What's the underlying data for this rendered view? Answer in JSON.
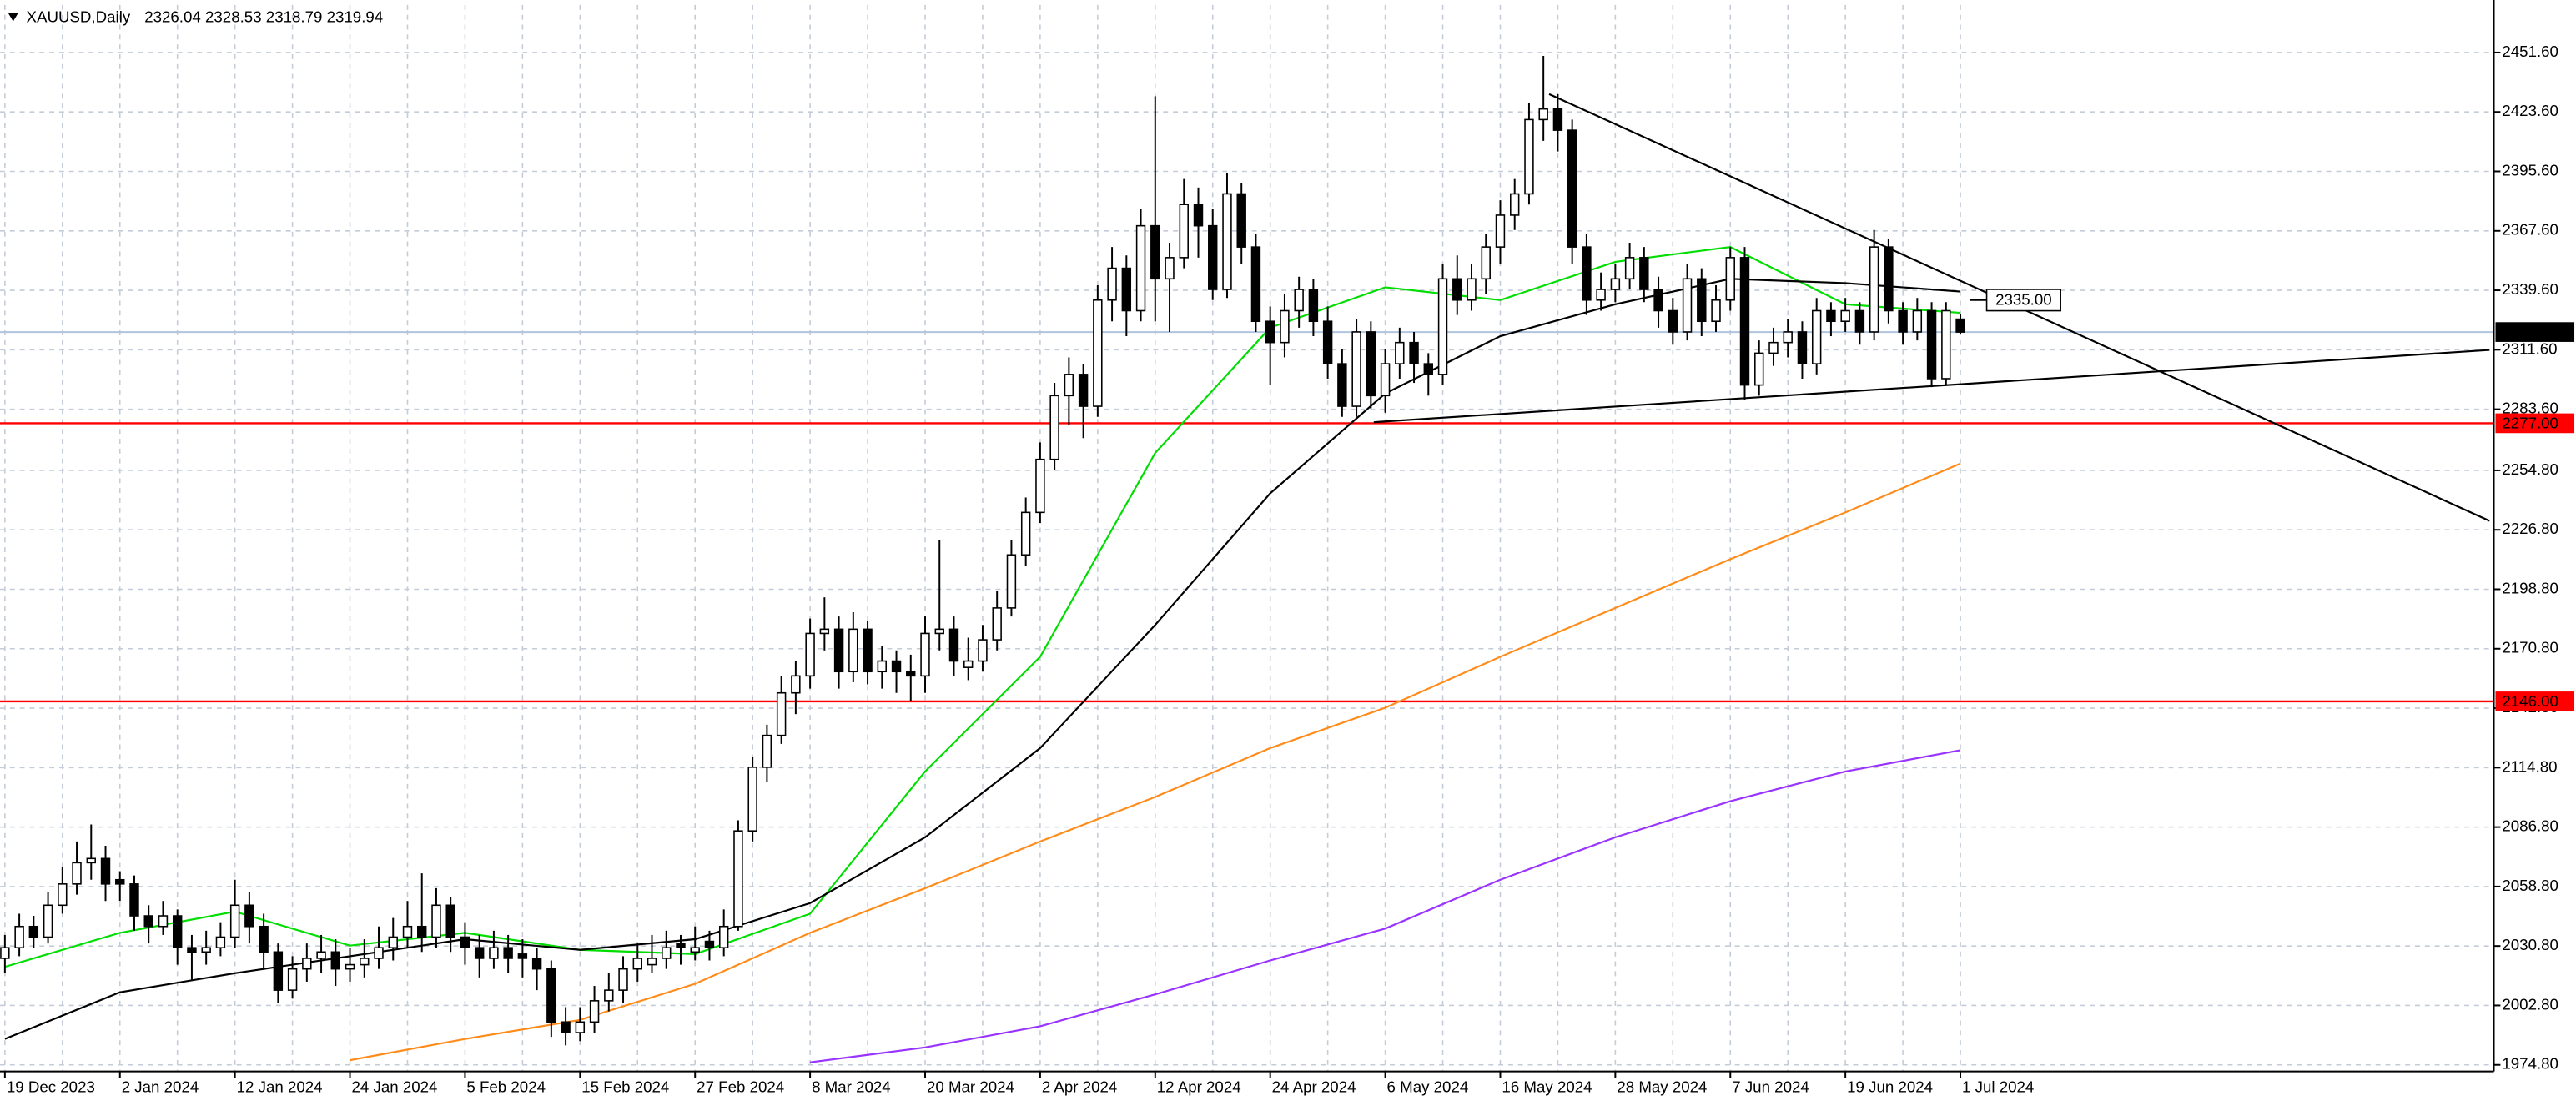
{
  "chart_data": {
    "type": "candlestick",
    "title": "XAUUSD,Daily",
    "up_color": "#ffffff",
    "down_color": "#000000",
    "grid": true,
    "grid_color": "#c3ccd8",
    "price_line_color": "#b0c4de",
    "xlim": [
      -0.34,
      173.1
    ],
    "ylim": [
      1971.7,
      2474.0
    ],
    "yticks": [
      {
        "value": 2451.6,
        "label": "2451.60"
      },
      {
        "value": 2423.6,
        "label": "2423.60"
      },
      {
        "value": 2395.6,
        "label": "2395.60"
      },
      {
        "value": 2367.6,
        "label": "2367.60"
      },
      {
        "value": 2339.6,
        "label": "2339.60"
      },
      {
        "value": 2311.6,
        "label": "2311.60"
      },
      {
        "value": 2283.6,
        "label": "2283.60"
      },
      {
        "value": 2254.8,
        "label": "2254.80"
      },
      {
        "value": 2226.8,
        "label": "2226.80"
      },
      {
        "value": 2198.8,
        "label": "2198.80"
      },
      {
        "value": 2170.8,
        "label": "2170.80"
      },
      {
        "value": 2142.8,
        "label": "2142.80"
      },
      {
        "value": 2114.8,
        "label": "2114.80"
      },
      {
        "value": 2086.8,
        "label": "2086.80"
      },
      {
        "value": 2058.8,
        "label": "2058.80"
      },
      {
        "value": 2030.8,
        "label": "2030.80"
      },
      {
        "value": 2002.8,
        "label": "2002.80"
      },
      {
        "value": 1974.8,
        "label": "1974.80"
      }
    ],
    "categories": [
      "19 Dec 2023",
      null,
      null,
      null,
      null,
      null,
      null,
      null,
      "2 Jan 2024",
      null,
      null,
      null,
      null,
      null,
      null,
      null,
      "12 Jan 2024",
      null,
      null,
      null,
      null,
      null,
      null,
      null,
      "24 Jan 2024",
      null,
      null,
      null,
      null,
      null,
      null,
      null,
      "5 Feb 2024",
      null,
      null,
      null,
      null,
      null,
      null,
      null,
      "15 Feb 2024",
      null,
      null,
      null,
      null,
      null,
      null,
      null,
      "27 Feb 2024",
      null,
      null,
      null,
      null,
      null,
      null,
      null,
      "8 Mar 2024",
      null,
      null,
      null,
      null,
      null,
      null,
      null,
      "20 Mar 2024",
      null,
      null,
      null,
      null,
      null,
      null,
      null,
      "2 Apr 2024",
      null,
      null,
      null,
      null,
      null,
      null,
      null,
      "12 Apr 2024",
      null,
      null,
      null,
      null,
      null,
      null,
      null,
      "24 Apr 2024",
      null,
      null,
      null,
      null,
      null,
      null,
      null,
      "6 May 2024",
      null,
      null,
      null,
      null,
      null,
      null,
      null,
      "16 May 2024",
      null,
      null,
      null,
      null,
      null,
      null,
      null,
      "28 May 2024",
      null,
      null,
      null,
      null,
      null,
      null,
      null,
      "7 Jun 2024",
      null,
      null,
      null,
      null,
      null,
      null,
      null,
      "19 Jun 2024",
      null,
      null,
      null,
      null,
      null,
      null,
      null,
      "1 Jul 2024"
    ],
    "values": [
      [
        2025,
        2036,
        2018,
        2030
      ],
      [
        2030,
        2046,
        2026,
        2040
      ],
      [
        2040,
        2045,
        2030,
        2035
      ],
      [
        2035,
        2056,
        2032,
        2050
      ],
      [
        2050,
        2068,
        2046,
        2060
      ],
      [
        2060,
        2080,
        2055,
        2070
      ],
      [
        2070,
        2088,
        2062,
        2072
      ],
      [
        2072,
        2078,
        2052,
        2060
      ],
      [
        2062,
        2066,
        2052,
        2060
      ],
      [
        2060,
        2064,
        2038,
        2045
      ],
      [
        2045,
        2050,
        2032,
        2040
      ],
      [
        2040,
        2052,
        2036,
        2045
      ],
      [
        2045,
        2048,
        2022,
        2030
      ],
      [
        2030,
        2036,
        2015,
        2028
      ],
      [
        2028,
        2038,
        2022,
        2030
      ],
      [
        2030,
        2042,
        2026,
        2035
      ],
      [
        2035,
        2062,
        2030,
        2050
      ],
      [
        2050,
        2056,
        2032,
        2040
      ],
      [
        2040,
        2046,
        2020,
        2028
      ],
      [
        2028,
        2032,
        2004,
        2010
      ],
      [
        2010,
        2026,
        2006,
        2020
      ],
      [
        2020,
        2032,
        2014,
        2025
      ],
      [
        2025,
        2036,
        2018,
        2028
      ],
      [
        2028,
        2034,
        2012,
        2020
      ],
      [
        2020,
        2030,
        2014,
        2022
      ],
      [
        2022,
        2034,
        2016,
        2025
      ],
      [
        2025,
        2040,
        2020,
        2030
      ],
      [
        2030,
        2044,
        2024,
        2035
      ],
      [
        2035,
        2052,
        2030,
        2040
      ],
      [
        2040,
        2065,
        2028,
        2035
      ],
      [
        2035,
        2058,
        2030,
        2050
      ],
      [
        2050,
        2054,
        2028,
        2035
      ],
      [
        2035,
        2042,
        2022,
        2030
      ],
      [
        2030,
        2036,
        2016,
        2025
      ],
      [
        2025,
        2038,
        2020,
        2030
      ],
      [
        2030,
        2036,
        2018,
        2025
      ],
      [
        2027,
        2034,
        2016,
        2025
      ],
      [
        2025,
        2030,
        2010,
        2020
      ],
      [
        2020,
        2024,
        1988,
        1995
      ],
      [
        1995,
        2002,
        1984,
        1990
      ],
      [
        1990,
        2002,
        1986,
        1995
      ],
      [
        1995,
        2012,
        1990,
        2005
      ],
      [
        2005,
        2018,
        2000,
        2010
      ],
      [
        2010,
        2026,
        2004,
        2020
      ],
      [
        2020,
        2032,
        2014,
        2025
      ],
      [
        2022,
        2036,
        2018,
        2025
      ],
      [
        2025,
        2038,
        2020,
        2030
      ],
      [
        2032,
        2036,
        2022,
        2030
      ],
      [
        2028,
        2040,
        2024,
        2030
      ],
      [
        2033,
        2038,
        2024,
        2030
      ],
      [
        2030,
        2048,
        2026,
        2040
      ],
      [
        2040,
        2090,
        2038,
        2085
      ],
      [
        2085,
        2120,
        2080,
        2115
      ],
      [
        2115,
        2135,
        2108,
        2130
      ],
      [
        2130,
        2158,
        2126,
        2150
      ],
      [
        2150,
        2165,
        2140,
        2158
      ],
      [
        2158,
        2185,
        2152,
        2178
      ],
      [
        2178,
        2195,
        2170,
        2180
      ],
      [
        2180,
        2186,
        2152,
        2160
      ],
      [
        2160,
        2188,
        2155,
        2180
      ],
      [
        2180,
        2184,
        2154,
        2160
      ],
      [
        2160,
        2172,
        2152,
        2165
      ],
      [
        2165,
        2170,
        2150,
        2160
      ],
      [
        2160,
        2168,
        2146,
        2158
      ],
      [
        2158,
        2186,
        2150,
        2178
      ],
      [
        2178,
        2222,
        2170,
        2180
      ],
      [
        2180,
        2186,
        2158,
        2165
      ],
      [
        2162,
        2176,
        2156,
        2165
      ],
      [
        2165,
        2182,
        2160,
        2175
      ],
      [
        2175,
        2198,
        2170,
        2190
      ],
      [
        2190,
        2222,
        2186,
        2215
      ],
      [
        2215,
        2242,
        2210,
        2235
      ],
      [
        2235,
        2268,
        2230,
        2260
      ],
      [
        2260,
        2296,
        2255,
        2290
      ],
      [
        2290,
        2308,
        2276,
        2300
      ],
      [
        2300,
        2305,
        2270,
        2285
      ],
      [
        2285,
        2342,
        2280,
        2335
      ],
      [
        2335,
        2360,
        2325,
        2350
      ],
      [
        2350,
        2356,
        2318,
        2330
      ],
      [
        2330,
        2378,
        2325,
        2370
      ],
      [
        2370,
        2431,
        2325,
        2345
      ],
      [
        2345,
        2362,
        2320,
        2355
      ],
      [
        2355,
        2392,
        2350,
        2380
      ],
      [
        2380,
        2388,
        2355,
        2370
      ],
      [
        2370,
        2378,
        2335,
        2340
      ],
      [
        2340,
        2395,
        2336,
        2385
      ],
      [
        2385,
        2390,
        2352,
        2360
      ],
      [
        2360,
        2366,
        2320,
        2325
      ],
      [
        2325,
        2332,
        2295,
        2315
      ],
      [
        2315,
        2338,
        2308,
        2330
      ],
      [
        2330,
        2346,
        2322,
        2340
      ],
      [
        2340,
        2345,
        2318,
        2325
      ],
      [
        2325,
        2332,
        2298,
        2305
      ],
      [
        2305,
        2312,
        2280,
        2285
      ],
      [
        2285,
        2326,
        2280,
        2320
      ],
      [
        2320,
        2325,
        2284,
        2290
      ],
      [
        2290,
        2312,
        2282,
        2305
      ],
      [
        2305,
        2322,
        2298,
        2315
      ],
      [
        2315,
        2320,
        2296,
        2305
      ],
      [
        2305,
        2310,
        2290,
        2300
      ],
      [
        2300,
        2352,
        2295,
        2345
      ],
      [
        2345,
        2356,
        2328,
        2335
      ],
      [
        2335,
        2352,
        2330,
        2345
      ],
      [
        2345,
        2366,
        2338,
        2360
      ],
      [
        2360,
        2382,
        2352,
        2375
      ],
      [
        2375,
        2392,
        2368,
        2385
      ],
      [
        2385,
        2428,
        2380,
        2420
      ],
      [
        2420,
        2450,
        2410,
        2425
      ],
      [
        2425,
        2432,
        2405,
        2415
      ],
      [
        2415,
        2420,
        2352,
        2360
      ],
      [
        2360,
        2366,
        2328,
        2335
      ],
      [
        2335,
        2348,
        2330,
        2340
      ],
      [
        2340,
        2352,
        2334,
        2345
      ],
      [
        2345,
        2362,
        2340,
        2355
      ],
      [
        2355,
        2360,
        2334,
        2340
      ],
      [
        2340,
        2346,
        2322,
        2330
      ],
      [
        2330,
        2336,
        2314,
        2320
      ],
      [
        2320,
        2352,
        2316,
        2345
      ],
      [
        2345,
        2350,
        2318,
        2325
      ],
      [
        2325,
        2342,
        2320,
        2335
      ],
      [
        2335,
        2360,
        2330,
        2355
      ],
      [
        2355,
        2360,
        2288,
        2295
      ],
      [
        2295,
        2316,
        2290,
        2310
      ],
      [
        2310,
        2322,
        2304,
        2315
      ],
      [
        2315,
        2326,
        2308,
        2320
      ],
      [
        2320,
        2325,
        2298,
        2305
      ],
      [
        2305,
        2336,
        2300,
        2330
      ],
      [
        2330,
        2334,
        2318,
        2325
      ],
      [
        2325,
        2336,
        2320,
        2330
      ],
      [
        2330,
        2334,
        2314,
        2320
      ],
      [
        2320,
        2368,
        2316,
        2360
      ],
      [
        2360,
        2364,
        2324,
        2330
      ],
      [
        2330,
        2334,
        2314,
        2320
      ],
      [
        2320,
        2336,
        2316,
        2330
      ],
      [
        2330,
        2334,
        2294,
        2298
      ],
      [
        2298,
        2334,
        2295,
        2330
      ],
      [
        2326.04,
        2328.53,
        2318.79,
        2319.94
      ]
    ],
    "ma": [
      {
        "color": "#00dd00",
        "x": [
          0,
          8,
          16,
          24,
          32,
          40,
          48,
          56,
          64,
          72,
          80,
          88,
          96,
          104,
          112,
          120,
          128,
          136
        ],
        "values": [
          2021,
          2037,
          2047,
          2031,
          2037,
          2029,
          2027,
          2046,
          2113,
          2167,
          2263,
          2322,
          2341,
          2335,
          2353,
          2360,
          2333,
          2329
        ]
      },
      {
        "color": "#000000",
        "x": [
          0,
          8,
          16,
          24,
          32,
          40,
          48,
          56,
          64,
          72,
          80,
          88,
          96,
          104,
          112,
          120,
          128,
          136
        ],
        "values": [
          1987,
          2009,
          2018,
          2026,
          2034,
          2029,
          2034,
          2051,
          2082,
          2124,
          2182,
          2244,
          2291,
          2318,
          2333,
          2345,
          2343,
          2339
        ]
      },
      {
        "color": "#ff8c1a",
        "x": [
          24,
          32,
          40,
          48,
          56,
          64,
          72,
          80,
          88,
          96,
          104,
          112,
          120,
          128,
          136
        ],
        "values": [
          1977,
          1987,
          1996,
          2013,
          2037,
          2058,
          2080,
          2101,
          2124,
          2143,
          2167,
          2190,
          2213,
          2235,
          2258
        ]
      },
      {
        "color": "#9933ff",
        "x": [
          56,
          64,
          72,
          80,
          88,
          96,
          104,
          112,
          120,
          128,
          136
        ],
        "values": [
          1976,
          1983,
          1993,
          2008,
          2024,
          2039,
          2062,
          2082,
          2099,
          2113,
          2123
        ]
      }
    ],
    "trendlines": [
      {
        "color": "#000000",
        "x": [
          107.4,
          172.8
        ],
        "y": [
          2432,
          2231
        ]
      },
      {
        "color": "#000000",
        "x": [
          95.2,
          172.8
        ],
        "y": [
          2277.5,
          2311.5
        ]
      }
    ],
    "levels": [
      {
        "value": 2277,
        "label": "2277.00",
        "color": "#ff0000"
      },
      {
        "value": 2146,
        "label": "2146.00",
        "color": "#ff0000"
      }
    ],
    "annotation": {
      "value": 2335,
      "label": "2335.00"
    }
  }
}
